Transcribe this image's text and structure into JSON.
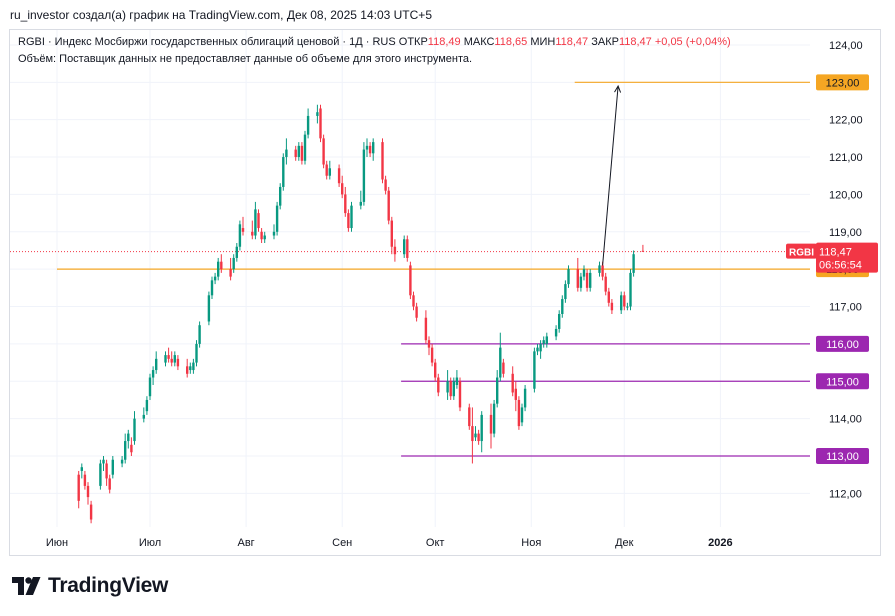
{
  "header": {
    "caption": "ru_investor создал(а) график на TradingView.com, Дек 08, 2025 14:03 UTC+5"
  },
  "legend": {
    "title": "RGBI · Индекс Мосбиржи государственных облигаций ценовой · 1Д · RUS",
    "open_label": "ОТКР",
    "open_value": "118,49",
    "high_label": "МАКС",
    "high_value": "118,65",
    "low_label": "МИН",
    "low_value": "118,47",
    "close_label": "ЗАКР",
    "close_value": "118,47",
    "change": "+0,05 (+0,04%)",
    "volume_note": "Объём: Поставщик данных не предоставляет данные об объеме для этого инструмента."
  },
  "price_label": {
    "symbol": "RGBI",
    "price": "118,47",
    "countdown": "06:56:54"
  },
  "logo": {
    "text": "TradingView"
  },
  "colors": {
    "up": "#089981",
    "down": "#f23645",
    "orange": "#f5a623",
    "purple": "#9c27b0",
    "grid": "#f0f3fa"
  },
  "chart_data": {
    "type": "candlestick",
    "title": "RGBI · Индекс Мосбиржи государственных облигаций ценовой · 1Д · RUS",
    "ylim": [
      111.1,
      124.4
    ],
    "y_ticks": [
      "112,00",
      "113,00",
      "114,00",
      "115,00",
      "116,00",
      "117,00",
      "118,00",
      "119,00",
      "120,00",
      "121,00",
      "122,00",
      "123,00",
      "124,00"
    ],
    "x_ticks": [
      {
        "label": "Июн",
        "day": 0
      },
      {
        "label": "Июл",
        "day": 30
      },
      {
        "label": "Авг",
        "day": 61
      },
      {
        "label": "Сен",
        "day": 92
      },
      {
        "label": "Окт",
        "day": 122
      },
      {
        "label": "Ноя",
        "day": 153
      },
      {
        "label": "Дек",
        "day": 183
      },
      {
        "label": "2026",
        "day": 214
      }
    ],
    "candles": [
      {
        "d": 7,
        "o": 112.5,
        "h": 112.6,
        "l": 111.6,
        "c": 111.8
      },
      {
        "d": 8,
        "o": 112.6,
        "h": 112.8,
        "l": 112.4,
        "c": 112.7
      },
      {
        "d": 9,
        "o": 112.5,
        "h": 112.6,
        "l": 112.1,
        "c": 112.2
      },
      {
        "d": 10,
        "o": 112.2,
        "h": 112.3,
        "l": 111.7,
        "c": 111.9
      },
      {
        "d": 11,
        "o": 111.7,
        "h": 111.8,
        "l": 111.2,
        "c": 111.3
      },
      {
        "d": 14,
        "o": 112.2,
        "h": 112.9,
        "l": 112.1,
        "c": 112.8
      },
      {
        "d": 15,
        "o": 112.8,
        "h": 113.0,
        "l": 112.6,
        "c": 112.9
      },
      {
        "d": 16,
        "o": 112.8,
        "h": 112.9,
        "l": 112.2,
        "c": 112.4
      },
      {
        "d": 17,
        "o": 112.4,
        "h": 112.5,
        "l": 112.0,
        "c": 112.1
      },
      {
        "d": 18,
        "o": 112.5,
        "h": 113.0,
        "l": 112.4,
        "c": 112.9
      },
      {
        "d": 21,
        "o": 112.8,
        "h": 113.0,
        "l": 112.7,
        "c": 112.9
      },
      {
        "d": 22,
        "o": 112.9,
        "h": 113.6,
        "l": 112.8,
        "c": 113.4
      },
      {
        "d": 23,
        "o": 113.4,
        "h": 113.7,
        "l": 113.2,
        "c": 113.6
      },
      {
        "d": 24,
        "o": 113.3,
        "h": 113.5,
        "l": 113.0,
        "c": 113.1
      },
      {
        "d": 25,
        "o": 113.4,
        "h": 114.2,
        "l": 113.3,
        "c": 114.0
      },
      {
        "d": 28,
        "o": 114.0,
        "h": 114.3,
        "l": 113.9,
        "c": 114.1
      },
      {
        "d": 29,
        "o": 114.2,
        "h": 114.6,
        "l": 114.1,
        "c": 114.5
      },
      {
        "d": 30,
        "o": 114.6,
        "h": 115.2,
        "l": 114.5,
        "c": 115.1
      },
      {
        "d": 31,
        "o": 115.1,
        "h": 115.4,
        "l": 114.9,
        "c": 115.3
      },
      {
        "d": 32,
        "o": 115.3,
        "h": 115.8,
        "l": 115.2,
        "c": 115.6
      },
      {
        "d": 35,
        "o": 115.5,
        "h": 115.8,
        "l": 115.4,
        "c": 115.7
      },
      {
        "d": 36,
        "o": 115.7,
        "h": 115.9,
        "l": 115.5,
        "c": 115.6
      },
      {
        "d": 37,
        "o": 115.6,
        "h": 115.8,
        "l": 115.4,
        "c": 115.5
      },
      {
        "d": 38,
        "o": 115.5,
        "h": 115.8,
        "l": 115.4,
        "c": 115.7
      },
      {
        "d": 39,
        "o": 115.6,
        "h": 115.7,
        "l": 115.3,
        "c": 115.4
      },
      {
        "d": 42,
        "o": 115.4,
        "h": 115.6,
        "l": 115.1,
        "c": 115.2
      },
      {
        "d": 43,
        "o": 115.3,
        "h": 115.5,
        "l": 115.2,
        "c": 115.4
      },
      {
        "d": 44,
        "o": 115.3,
        "h": 115.6,
        "l": 115.2,
        "c": 115.5
      },
      {
        "d": 45,
        "o": 115.5,
        "h": 116.1,
        "l": 115.4,
        "c": 116.0
      },
      {
        "d": 46,
        "o": 116.0,
        "h": 116.6,
        "l": 115.9,
        "c": 116.5
      },
      {
        "d": 49,
        "o": 116.6,
        "h": 117.4,
        "l": 116.5,
        "c": 117.3
      },
      {
        "d": 50,
        "o": 117.3,
        "h": 117.8,
        "l": 117.2,
        "c": 117.7
      },
      {
        "d": 51,
        "o": 117.7,
        "h": 117.9,
        "l": 117.6,
        "c": 117.8
      },
      {
        "d": 52,
        "o": 117.8,
        "h": 118.3,
        "l": 117.7,
        "c": 118.2
      },
      {
        "d": 53,
        "o": 118.2,
        "h": 118.4,
        "l": 117.9,
        "c": 118.0
      },
      {
        "d": 56,
        "o": 118.0,
        "h": 118.3,
        "l": 117.7,
        "c": 117.8
      },
      {
        "d": 57,
        "o": 118.0,
        "h": 118.4,
        "l": 117.9,
        "c": 118.3
      },
      {
        "d": 58,
        "o": 118.3,
        "h": 118.7,
        "l": 118.2,
        "c": 118.6
      },
      {
        "d": 59,
        "o": 118.6,
        "h": 119.3,
        "l": 118.5,
        "c": 119.2
      },
      {
        "d": 60,
        "o": 119.1,
        "h": 119.4,
        "l": 118.9,
        "c": 119.0
      },
      {
        "d": 63,
        "o": 119.0,
        "h": 119.3,
        "l": 118.8,
        "c": 118.9
      },
      {
        "d": 64,
        "o": 118.9,
        "h": 119.8,
        "l": 118.8,
        "c": 119.6
      },
      {
        "d": 65,
        "o": 119.5,
        "h": 119.6,
        "l": 119.0,
        "c": 119.1
      },
      {
        "d": 66,
        "o": 119.0,
        "h": 119.1,
        "l": 118.7,
        "c": 118.8
      },
      {
        "d": 67,
        "o": 118.8,
        "h": 119.0,
        "l": 118.7,
        "c": 118.9
      },
      {
        "d": 70,
        "o": 118.9,
        "h": 119.2,
        "l": 118.8,
        "c": 119.0
      },
      {
        "d": 71,
        "o": 119.0,
        "h": 119.8,
        "l": 118.9,
        "c": 119.7
      },
      {
        "d": 72,
        "o": 119.7,
        "h": 120.3,
        "l": 119.6,
        "c": 120.2
      },
      {
        "d": 73,
        "o": 120.2,
        "h": 121.1,
        "l": 120.1,
        "c": 121.0
      },
      {
        "d": 74,
        "o": 121.0,
        "h": 121.5,
        "l": 120.8,
        "c": 121.2
      },
      {
        "d": 77,
        "o": 121.2,
        "h": 121.3,
        "l": 120.9,
        "c": 121.0
      },
      {
        "d": 78,
        "o": 121.0,
        "h": 121.4,
        "l": 120.9,
        "c": 121.3
      },
      {
        "d": 79,
        "o": 121.3,
        "h": 121.4,
        "l": 120.8,
        "c": 120.9
      },
      {
        "d": 80,
        "o": 120.9,
        "h": 121.7,
        "l": 120.8,
        "c": 121.6
      },
      {
        "d": 81,
        "o": 121.6,
        "h": 122.3,
        "l": 121.5,
        "c": 122.1
      },
      {
        "d": 84,
        "o": 122.1,
        "h": 122.4,
        "l": 121.9,
        "c": 122.2
      },
      {
        "d": 85,
        "o": 122.3,
        "h": 122.4,
        "l": 121.4,
        "c": 121.5
      },
      {
        "d": 86,
        "o": 121.5,
        "h": 121.6,
        "l": 120.7,
        "c": 120.8
      },
      {
        "d": 87,
        "o": 120.8,
        "h": 120.9,
        "l": 120.4,
        "c": 120.5
      },
      {
        "d": 88,
        "o": 120.5,
        "h": 120.9,
        "l": 120.4,
        "c": 120.7
      },
      {
        "d": 91,
        "o": 120.7,
        "h": 120.8,
        "l": 120.2,
        "c": 120.3
      },
      {
        "d": 92,
        "o": 120.3,
        "h": 120.5,
        "l": 119.9,
        "c": 120.0
      },
      {
        "d": 93,
        "o": 120.0,
        "h": 120.2,
        "l": 119.4,
        "c": 119.5
      },
      {
        "d": 94,
        "o": 119.5,
        "h": 119.6,
        "l": 119.0,
        "c": 119.1
      },
      {
        "d": 95,
        "o": 119.1,
        "h": 119.8,
        "l": 119.0,
        "c": 119.7
      },
      {
        "d": 98,
        "o": 119.7,
        "h": 120.1,
        "l": 119.6,
        "c": 119.8
      },
      {
        "d": 99,
        "o": 119.8,
        "h": 121.4,
        "l": 119.7,
        "c": 121.2
      },
      {
        "d": 100,
        "o": 121.2,
        "h": 121.5,
        "l": 121.0,
        "c": 121.3
      },
      {
        "d": 101,
        "o": 121.3,
        "h": 121.4,
        "l": 121.0,
        "c": 121.1
      },
      {
        "d": 102,
        "o": 121.1,
        "h": 121.5,
        "l": 120.9,
        "c": 121.4
      },
      {
        "d": 105,
        "o": 121.4,
        "h": 121.5,
        "l": 120.3,
        "c": 120.4
      },
      {
        "d": 106,
        "o": 120.4,
        "h": 120.5,
        "l": 120.0,
        "c": 120.1
      },
      {
        "d": 107,
        "o": 120.1,
        "h": 120.2,
        "l": 119.2,
        "c": 119.3
      },
      {
        "d": 108,
        "o": 119.3,
        "h": 119.4,
        "l": 118.4,
        "c": 118.6
      },
      {
        "d": 109,
        "o": 118.6,
        "h": 118.8,
        "l": 118.2,
        "c": 118.4
      },
      {
        "d": 112,
        "o": 118.4,
        "h": 118.9,
        "l": 118.3,
        "c": 118.8
      },
      {
        "d": 113,
        "o": 118.8,
        "h": 118.9,
        "l": 118.2,
        "c": 118.3
      },
      {
        "d": 114,
        "o": 118.1,
        "h": 118.2,
        "l": 117.2,
        "c": 117.3
      },
      {
        "d": 115,
        "o": 117.3,
        "h": 117.4,
        "l": 116.9,
        "c": 117.0
      },
      {
        "d": 116,
        "o": 117.0,
        "h": 117.1,
        "l": 116.6,
        "c": 116.7
      },
      {
        "d": 119,
        "o": 116.7,
        "h": 116.9,
        "l": 116.0,
        "c": 116.1
      },
      {
        "d": 120,
        "o": 116.1,
        "h": 116.2,
        "l": 115.7,
        "c": 115.9
      },
      {
        "d": 121,
        "o": 115.9,
        "h": 116.0,
        "l": 115.4,
        "c": 115.5
      },
      {
        "d": 122,
        "o": 115.5,
        "h": 115.6,
        "l": 115.0,
        "c": 115.1
      },
      {
        "d": 123,
        "o": 115.1,
        "h": 115.2,
        "l": 114.6,
        "c": 114.7
      },
      {
        "d": 126,
        "o": 114.7,
        "h": 115.3,
        "l": 114.5,
        "c": 115.0
      },
      {
        "d": 127,
        "o": 115.0,
        "h": 115.1,
        "l": 114.5,
        "c": 114.6
      },
      {
        "d": 128,
        "o": 114.6,
        "h": 115.1,
        "l": 114.5,
        "c": 115.0
      },
      {
        "d": 129,
        "o": 114.9,
        "h": 115.3,
        "l": 114.8,
        "c": 115.1
      },
      {
        "d": 130,
        "o": 115.0,
        "h": 115.1,
        "l": 114.2,
        "c": 114.3
      },
      {
        "d": 133,
        "o": 114.3,
        "h": 114.4,
        "l": 113.7,
        "c": 113.8
      },
      {
        "d": 134,
        "o": 113.8,
        "h": 114.3,
        "l": 112.8,
        "c": 113.4
      },
      {
        "d": 135,
        "o": 113.5,
        "h": 113.8,
        "l": 113.4,
        "c": 113.6
      },
      {
        "d": 136,
        "o": 113.6,
        "h": 113.7,
        "l": 113.3,
        "c": 113.4
      },
      {
        "d": 137,
        "o": 113.4,
        "h": 114.2,
        "l": 113.1,
        "c": 114.1
      },
      {
        "d": 140,
        "o": 114.1,
        "h": 114.4,
        "l": 113.2,
        "c": 113.6
      },
      {
        "d": 141,
        "o": 113.6,
        "h": 114.5,
        "l": 113.5,
        "c": 114.4
      },
      {
        "d": 142,
        "o": 114.4,
        "h": 115.3,
        "l": 114.3,
        "c": 115.1
      },
      {
        "d": 143,
        "o": 115.1,
        "h": 116.3,
        "l": 115.0,
        "c": 115.9
      },
      {
        "d": 144,
        "o": 115.5,
        "h": 115.6,
        "l": 115.1,
        "c": 115.2
      },
      {
        "d": 147,
        "o": 115.2,
        "h": 115.4,
        "l": 114.6,
        "c": 114.7
      },
      {
        "d": 148,
        "o": 114.8,
        "h": 115.0,
        "l": 114.2,
        "c": 114.5
      },
      {
        "d": 149,
        "o": 114.5,
        "h": 114.6,
        "l": 113.7,
        "c": 113.8
      },
      {
        "d": 150,
        "o": 113.9,
        "h": 114.4,
        "l": 113.8,
        "c": 114.3
      },
      {
        "d": 151,
        "o": 114.3,
        "h": 114.9,
        "l": 114.2,
        "c": 114.8
      },
      {
        "d": 154,
        "o": 114.8,
        "h": 115.9,
        "l": 114.7,
        "c": 115.8
      },
      {
        "d": 155,
        "o": 115.8,
        "h": 116.0,
        "l": 115.7,
        "c": 115.9
      },
      {
        "d": 156,
        "o": 115.8,
        "h": 116.1,
        "l": 115.6,
        "c": 116.0
      },
      {
        "d": 157,
        "o": 116.0,
        "h": 116.2,
        "l": 115.9,
        "c": 116.1
      },
      {
        "d": 158,
        "o": 116.0,
        "h": 116.3,
        "l": 115.9,
        "c": 116.2
      },
      {
        "d": 161,
        "o": 116.2,
        "h": 116.5,
        "l": 116.1,
        "c": 116.4
      },
      {
        "d": 162,
        "o": 116.4,
        "h": 116.9,
        "l": 116.3,
        "c": 116.8
      },
      {
        "d": 163,
        "o": 116.8,
        "h": 117.3,
        "l": 116.7,
        "c": 117.2
      },
      {
        "d": 164,
        "o": 117.2,
        "h": 117.7,
        "l": 117.1,
        "c": 117.6
      },
      {
        "d": 165,
        "o": 117.6,
        "h": 118.1,
        "l": 117.5,
        "c": 118.0
      },
      {
        "d": 168,
        "o": 118.0,
        "h": 118.3,
        "l": 117.4,
        "c": 117.5
      },
      {
        "d": 169,
        "o": 117.5,
        "h": 117.9,
        "l": 117.4,
        "c": 117.8
      },
      {
        "d": 170,
        "o": 117.8,
        "h": 118.1,
        "l": 117.7,
        "c": 118.0
      },
      {
        "d": 171,
        "o": 117.9,
        "h": 118.0,
        "l": 117.4,
        "c": 117.5
      },
      {
        "d": 172,
        "o": 117.5,
        "h": 118.0,
        "l": 117.4,
        "c": 117.9
      },
      {
        "d": 175,
        "o": 117.9,
        "h": 118.2,
        "l": 117.8,
        "c": 118.1
      },
      {
        "d": 176,
        "o": 118.1,
        "h": 118.2,
        "l": 117.7,
        "c": 117.8
      },
      {
        "d": 177,
        "o": 117.8,
        "h": 117.9,
        "l": 117.3,
        "c": 117.4
      },
      {
        "d": 178,
        "o": 117.4,
        "h": 117.5,
        "l": 117.0,
        "c": 117.1
      },
      {
        "d": 179,
        "o": 117.1,
        "h": 117.2,
        "l": 116.8,
        "c": 116.9
      },
      {
        "d": 182,
        "o": 116.9,
        "h": 117.4,
        "l": 116.8,
        "c": 117.3
      },
      {
        "d": 183,
        "o": 117.3,
        "h": 117.4,
        "l": 116.9,
        "c": 117.0
      },
      {
        "d": 184,
        "o": 117.0,
        "h": 117.1,
        "l": 116.9,
        "c": 117.0
      },
      {
        "d": 185,
        "o": 117.0,
        "h": 118.0,
        "l": 116.9,
        "c": 117.9
      },
      {
        "d": 186,
        "o": 117.9,
        "h": 118.5,
        "l": 117.8,
        "c": 118.4
      },
      {
        "d": 189,
        "o": 118.49,
        "h": 118.65,
        "l": 118.47,
        "c": 118.47
      }
    ],
    "levels": [
      {
        "label": "123,00",
        "value": 123.0,
        "color": "orange",
        "from_day": 167
      },
      {
        "label": "118,00",
        "value": 118.0,
        "color": "orange",
        "from_day": 0
      },
      {
        "label": "116,00",
        "value": 116.0,
        "color": "purple",
        "from_day": 111
      },
      {
        "label": "115,00",
        "value": 115.0,
        "color": "purple",
        "from_day": 111
      },
      {
        "label": "113,00",
        "value": 113.0,
        "color": "purple",
        "from_day": 111
      }
    ],
    "current_price": 118.47,
    "arrow": {
      "from_day": 176,
      "from_value": 118.1,
      "to_day": 181,
      "to_value": 122.9
    }
  }
}
